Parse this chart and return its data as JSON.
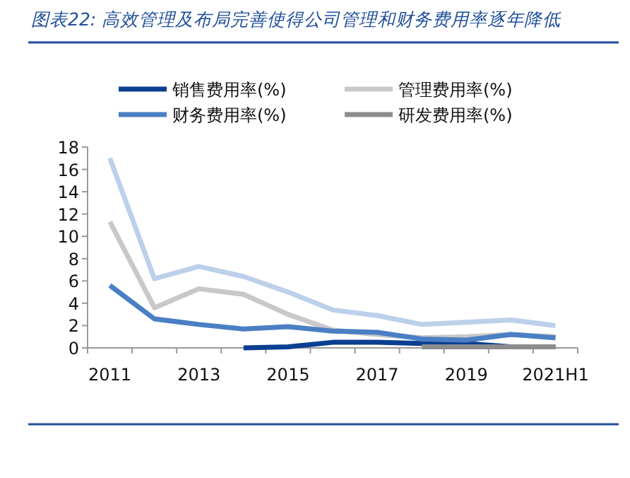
{
  "chart_data": {
    "type": "line",
    "title": "图表22:  高效管理及布局完善使得公司管理和财务费用率逐年降低",
    "categories": [
      "2011",
      null,
      "2013",
      null,
      "2015",
      null,
      "2017",
      null,
      "2019",
      null,
      "2021H1"
    ],
    "series": [
      {
        "color": "#bcd0ea",
        "values": [
          17,
          6.2,
          7.3,
          6.4,
          5.0,
          3.4,
          2.9,
          2.1,
          2.3,
          2.5,
          2.0
        ]
      },
      {
        "name": "销售费用率(%)",
        "color": "#0b3f91",
        "values": [
          null,
          null,
          null,
          0,
          0.1,
          0.5,
          0.5,
          0.4,
          0.4,
          0.1,
          0.1
        ]
      },
      {
        "name": "管理费用率(%)",
        "color": "#c8c8c8",
        "values": [
          11.3,
          3.6,
          5.3,
          4.8,
          3.0,
          1.6,
          1.2,
          0.9,
          1.0,
          1.2,
          1.0
        ]
      },
      {
        "name": "财务费用率(%)",
        "color": "#4a7fc4",
        "values": [
          5.6,
          2.6,
          2.1,
          1.7,
          1.9,
          1.5,
          1.4,
          0.8,
          0.7,
          1.2,
          0.9
        ]
      },
      {
        "name": "研发费用率(%)",
        "color": "#8c8c8c",
        "values": [
          null,
          null,
          null,
          null,
          null,
          null,
          null,
          0.1,
          0.1,
          0.1,
          0.1
        ]
      }
    ],
    "ylim": [
      0,
      18
    ],
    "yticks": [
      0,
      2,
      4,
      6,
      8,
      10,
      12,
      14,
      16,
      18
    ],
    "legend": "top"
  }
}
